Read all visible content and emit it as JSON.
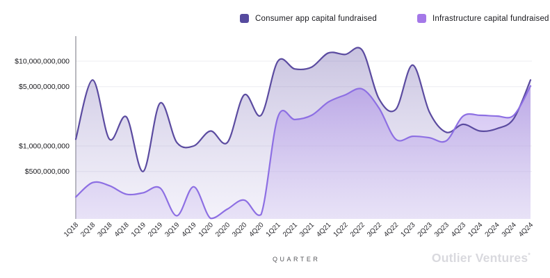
{
  "legend": [
    {
      "label": "Consumer app capital fundraised",
      "color": "#564a9e"
    },
    {
      "label": "Infrastructure capital fundraised",
      "color": "#a478e8"
    }
  ],
  "footer": {
    "x_axis_title": "QUARTER",
    "brand": "Outlier Ventures",
    "brand_mark": "*"
  },
  "chart_data": {
    "type": "area",
    "y_scale": "log",
    "grid": "horizontal",
    "legend_position": "top",
    "categories": [
      "1Q18",
      "2Q18",
      "3Q18",
      "4Q18",
      "1Q19",
      "2Q19",
      "3Q19",
      "4Q19",
      "1Q20",
      "2Q20",
      "3Q20",
      "4Q20",
      "1Q21",
      "2Q21",
      "3Q21",
      "4Q21",
      "1Q22",
      "2Q22",
      "3Q22",
      "4Q22",
      "1Q23",
      "2Q23",
      "3Q23",
      "4Q23",
      "1Q24",
      "2Q24",
      "3Q24",
      "4Q24"
    ],
    "xlabel": "QUARTER",
    "ylabel": "",
    "y_ticks": [
      {
        "label": "$10,000,000,000",
        "value": 10000000000
      },
      {
        "label": "$5,000,000,000",
        "value": 5000000000
      },
      {
        "label": "$1,000,000,000",
        "value": 1000000000
      },
      {
        "label": "$500,000,000",
        "value": 500000000
      }
    ],
    "series": [
      {
        "name": "Consumer app capital fundraised",
        "line_color": "#5b4ba0",
        "fill_top": "rgba(104,88,168,0.38)",
        "fill_bottom": "rgba(182,172,222,0.16)",
        "values_usd": [
          1200000000,
          6000000000,
          1200000000,
          2200000000,
          500000000,
          3200000000,
          1100000000,
          1000000000,
          1500000000,
          1100000000,
          4000000000,
          2300000000,
          10000000000,
          8100000000,
          8500000000,
          12500000000,
          12000000000,
          13500000000,
          3600000000,
          2700000000,
          9000000000,
          2500000000,
          1450000000,
          1800000000,
          1500000000,
          1600000000,
          2100000000,
          6000000000
        ]
      },
      {
        "name": "Infrastructure capital fundraised",
        "line_color": "#8d6fe3",
        "fill_top": "rgba(150,112,226,0.60)",
        "fill_bottom": "rgba(203,186,240,0.28)",
        "values_usd": [
          250000000,
          370000000,
          340000000,
          270000000,
          280000000,
          320000000,
          150000000,
          330000000,
          140000000,
          180000000,
          230000000,
          155000000,
          2200000000,
          2050000000,
          2300000000,
          3300000000,
          4000000000,
          4700000000,
          2800000000,
          1200000000,
          1300000000,
          1250000000,
          1150000000,
          2250000000,
          2300000000,
          2250000000,
          2300000000,
          5100000000
        ]
      }
    ]
  }
}
